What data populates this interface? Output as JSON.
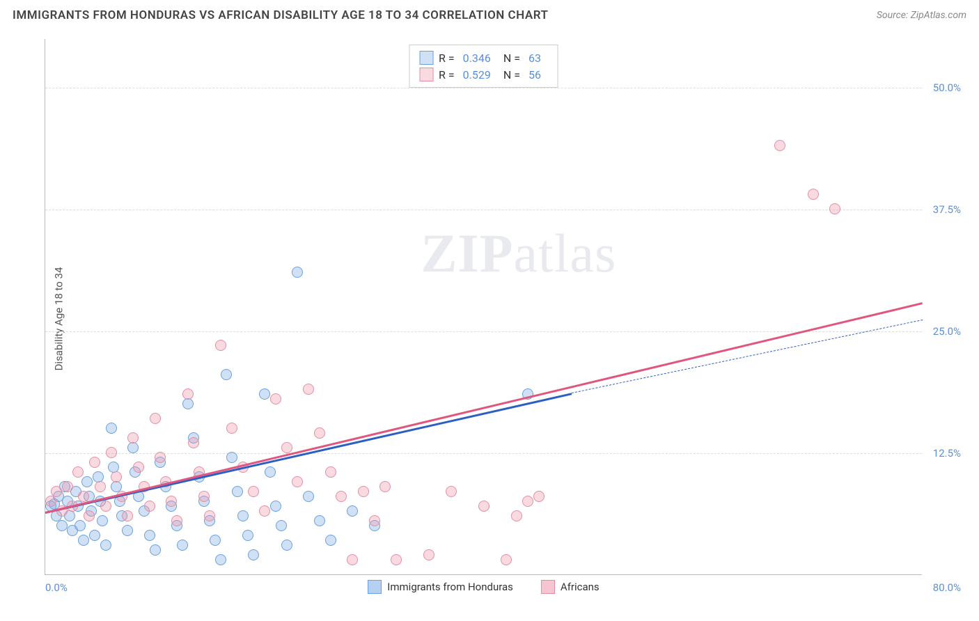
{
  "header": {
    "title": "IMMIGRANTS FROM HONDURAS VS AFRICAN DISABILITY AGE 18 TO 34 CORRELATION CHART",
    "source_label": "Source:",
    "source_name": "ZipAtlas.com"
  },
  "watermark": {
    "zip": "ZIP",
    "atlas": "atlas"
  },
  "chart": {
    "type": "scatter",
    "ylabel": "Disability Age 18 to 34",
    "xlim": [
      0,
      80
    ],
    "ylim": [
      0,
      55
    ],
    "x_ticks": [
      {
        "v": 0,
        "label": "0.0%"
      },
      {
        "v": 80,
        "label": "80.0%"
      }
    ],
    "y_ticks": [
      {
        "v": 12.5,
        "label": "12.5%"
      },
      {
        "v": 25.0,
        "label": "25.0%"
      },
      {
        "v": 37.5,
        "label": "37.5%"
      },
      {
        "v": 50.0,
        "label": "50.0%"
      }
    ],
    "grid_color": "#dddddd",
    "axis_color": "#bbbbbb",
    "tick_color": "#5b8fd6",
    "background_color": "#ffffff",
    "point_radius": 8,
    "series": [
      {
        "name": "Immigrants from Honduras",
        "fill": "rgba(120,170,230,0.35)",
        "stroke": "#6aa0dd",
        "r_label": "R =",
        "r": "0.346",
        "n_label": "N =",
        "n": "63",
        "trend": {
          "color": "#2b5fc1",
          "width": 2.5,
          "x0": 0,
          "y0": 6.5,
          "x1": 48,
          "y1": 18.7,
          "dash_to_x": 80,
          "dash_to_y": 26.2
        },
        "points": [
          [
            0.5,
            7.0
          ],
          [
            0.8,
            7.2
          ],
          [
            1.0,
            6.0
          ],
          [
            1.2,
            8.0
          ],
          [
            1.5,
            5.0
          ],
          [
            1.8,
            9.0
          ],
          [
            2.0,
            7.5
          ],
          [
            2.2,
            6.0
          ],
          [
            2.5,
            4.5
          ],
          [
            2.8,
            8.5
          ],
          [
            3.0,
            7.0
          ],
          [
            3.2,
            5.0
          ],
          [
            3.5,
            3.5
          ],
          [
            3.8,
            9.5
          ],
          [
            4.0,
            8.0
          ],
          [
            4.2,
            6.5
          ],
          [
            4.5,
            4.0
          ],
          [
            4.8,
            10.0
          ],
          [
            5.0,
            7.5
          ],
          [
            5.2,
            5.5
          ],
          [
            5.5,
            3.0
          ],
          [
            6.0,
            15.0
          ],
          [
            6.2,
            11.0
          ],
          [
            6.5,
            9.0
          ],
          [
            6.8,
            7.5
          ],
          [
            7.0,
            6.0
          ],
          [
            7.5,
            4.5
          ],
          [
            8.0,
            13.0
          ],
          [
            8.2,
            10.5
          ],
          [
            8.5,
            8.0
          ],
          [
            9.0,
            6.5
          ],
          [
            9.5,
            4.0
          ],
          [
            10.0,
            2.5
          ],
          [
            10.5,
            11.5
          ],
          [
            11.0,
            9.0
          ],
          [
            11.5,
            7.0
          ],
          [
            12.0,
            5.0
          ],
          [
            12.5,
            3.0
          ],
          [
            13.0,
            17.5
          ],
          [
            13.5,
            14.0
          ],
          [
            14.0,
            10.0
          ],
          [
            14.5,
            7.5
          ],
          [
            15.0,
            5.5
          ],
          [
            15.5,
            3.5
          ],
          [
            16.0,
            1.5
          ],
          [
            16.5,
            20.5
          ],
          [
            17.0,
            12.0
          ],
          [
            17.5,
            8.5
          ],
          [
            18.0,
            6.0
          ],
          [
            18.5,
            4.0
          ],
          [
            19.0,
            2.0
          ],
          [
            20.0,
            18.5
          ],
          [
            20.5,
            10.5
          ],
          [
            21.0,
            7.0
          ],
          [
            21.5,
            5.0
          ],
          [
            22.0,
            3.0
          ],
          [
            23.0,
            31.0
          ],
          [
            24.0,
            8.0
          ],
          [
            25.0,
            5.5
          ],
          [
            26.0,
            3.5
          ],
          [
            28.0,
            6.5
          ],
          [
            30.0,
            5.0
          ],
          [
            44.0,
            18.5
          ]
        ]
      },
      {
        "name": "Africans",
        "fill": "rgba(240,150,170,0.35)",
        "stroke": "#e28fa3",
        "r_label": "R =",
        "r": "0.529",
        "n_label": "N =",
        "n": "56",
        "trend": {
          "color": "#e0567e",
          "width": 2.5,
          "x0": 0,
          "y0": 6.5,
          "x1": 80,
          "y1": 28.0
        },
        "points": [
          [
            0.5,
            7.5
          ],
          [
            1.0,
            8.5
          ],
          [
            1.5,
            6.5
          ],
          [
            2.0,
            9.0
          ],
          [
            2.5,
            7.0
          ],
          [
            3.0,
            10.5
          ],
          [
            3.5,
            8.0
          ],
          [
            4.0,
            6.0
          ],
          [
            4.5,
            11.5
          ],
          [
            5.0,
            9.0
          ],
          [
            5.5,
            7.0
          ],
          [
            6.0,
            12.5
          ],
          [
            6.5,
            10.0
          ],
          [
            7.0,
            8.0
          ],
          [
            7.5,
            6.0
          ],
          [
            8.0,
            14.0
          ],
          [
            8.5,
            11.0
          ],
          [
            9.0,
            9.0
          ],
          [
            9.5,
            7.0
          ],
          [
            10.0,
            16.0
          ],
          [
            10.5,
            12.0
          ],
          [
            11.0,
            9.5
          ],
          [
            11.5,
            7.5
          ],
          [
            12.0,
            5.5
          ],
          [
            13.0,
            18.5
          ],
          [
            13.5,
            13.5
          ],
          [
            14.0,
            10.5
          ],
          [
            14.5,
            8.0
          ],
          [
            15.0,
            6.0
          ],
          [
            16.0,
            23.5
          ],
          [
            17.0,
            15.0
          ],
          [
            18.0,
            11.0
          ],
          [
            19.0,
            8.5
          ],
          [
            20.0,
            6.5
          ],
          [
            21.0,
            18.0
          ],
          [
            22.0,
            13.0
          ],
          [
            23.0,
            9.5
          ],
          [
            24.0,
            19.0
          ],
          [
            25.0,
            14.5
          ],
          [
            26.0,
            10.5
          ],
          [
            27.0,
            8.0
          ],
          [
            28.0,
            1.5
          ],
          [
            29.0,
            8.5
          ],
          [
            30.0,
            5.5
          ],
          [
            31.0,
            9.0
          ],
          [
            32.0,
            1.5
          ],
          [
            35.0,
            2.0
          ],
          [
            37.0,
            8.5
          ],
          [
            40.0,
            7.0
          ],
          [
            42.0,
            1.5
          ],
          [
            43.0,
            6.0
          ],
          [
            44.0,
            7.5
          ],
          [
            45.0,
            8.0
          ],
          [
            67.0,
            44.0
          ],
          [
            70.0,
            39.0
          ],
          [
            72.0,
            37.5
          ]
        ]
      }
    ],
    "legend_bottom": [
      {
        "label": "Immigrants from Honduras",
        "fill": "rgba(120,170,230,0.55)",
        "stroke": "#6aa0dd"
      },
      {
        "label": "Africans",
        "fill": "rgba(240,150,170,0.55)",
        "stroke": "#e28fa3"
      }
    ]
  }
}
